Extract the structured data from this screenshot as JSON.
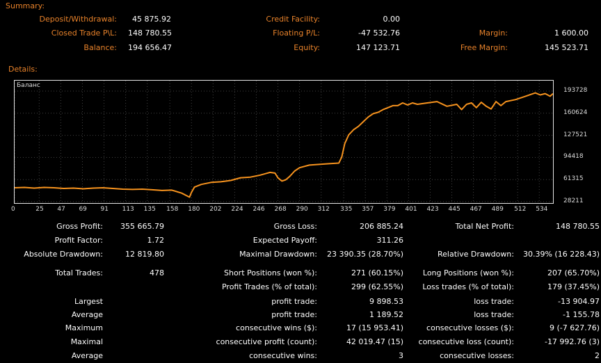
{
  "summary": {
    "title": "Summary:",
    "deposit_label": "Deposit/Withdrawal:",
    "deposit_value": "45 875.92",
    "credit_label": "Credit Facility:",
    "credit_value": "0.00",
    "closed_label": "Closed Trade P\\L:",
    "closed_value": "148 780.55",
    "floating_label": "Floating P/L:",
    "floating_value": "-47 532.76",
    "margin_label": "Margin:",
    "margin_value": "1 600.00",
    "balance_label": "Balance:",
    "balance_value": "194 656.47",
    "equity_label": "Equity:",
    "equity_value": "147 123.71",
    "free_margin_label": "Free Margin:",
    "free_margin_value": "145 523.71"
  },
  "details": {
    "title": "Details:"
  },
  "chart_data": {
    "type": "line",
    "title": "Баланс",
    "x_ticks": [
      "0",
      "25",
      "47",
      "69",
      "91",
      "113",
      "135",
      "158",
      "180",
      "202",
      "224",
      "246",
      "268",
      "290",
      "312",
      "335",
      "357",
      "379",
      "401",
      "423",
      "445",
      "467",
      "489",
      "512",
      "534"
    ],
    "y_ticks": [
      "193728",
      "160624",
      "127521",
      "94418",
      "61315",
      "28211"
    ],
    "ylim": [
      28211,
      193728
    ],
    "xlim": [
      0,
      548
    ],
    "line_color": "#f7931e",
    "series": [
      {
        "x": [
          0,
          10,
          20,
          30,
          40,
          50,
          60,
          70,
          80,
          90,
          100,
          110,
          120,
          130,
          140,
          150,
          160,
          170,
          178,
          180,
          183,
          190,
          200,
          210,
          220,
          230,
          240,
          250,
          260,
          265,
          268,
          272,
          276,
          280,
          285,
          290,
          300,
          310,
          320,
          330,
          333,
          336,
          340,
          345,
          350,
          355,
          360,
          365,
          370,
          375,
          380,
          385,
          390,
          395,
          400,
          405,
          410,
          420,
          430,
          440,
          450,
          455,
          460,
          465,
          470,
          475,
          480,
          485,
          490,
          495,
          500,
          510,
          520,
          530,
          535,
          540,
          545,
          548
        ],
        "y": [
          49000,
          49500,
          48500,
          49500,
          49000,
          48000,
          48500,
          47500,
          48500,
          49000,
          48000,
          47000,
          46500,
          47000,
          46000,
          45000,
          45500,
          41000,
          35000,
          42000,
          50000,
          54000,
          57000,
          58000,
          60000,
          64000,
          65000,
          68000,
          72000,
          71000,
          64000,
          59000,
          61000,
          66000,
          74000,
          79000,
          83000,
          84000,
          85000,
          86000,
          95000,
          115000,
          128000,
          136000,
          141000,
          148000,
          155000,
          160000,
          162000,
          166000,
          169000,
          172000,
          172000,
          176000,
          173000,
          176000,
          174000,
          176000,
          178000,
          171000,
          174000,
          166000,
          174000,
          176000,
          169000,
          177000,
          171000,
          167000,
          178000,
          172000,
          178000,
          181000,
          186000,
          191000,
          188000,
          190000,
          186000,
          190000
        ]
      }
    ]
  },
  "stats": {
    "gross_profit_label": "Gross Profit:",
    "gross_profit_value": "355 665.79",
    "gross_loss_label": "Gross Loss:",
    "gross_loss_value": "206 885.24",
    "total_net_label": "Total Net Profit:",
    "total_net_value": "148 780.55",
    "profit_factor_label": "Profit Factor:",
    "profit_factor_value": "1.72",
    "expected_payoff_label": "Expected Payoff:",
    "expected_payoff_value": "311.26",
    "abs_dd_label": "Absolute Drawdown:",
    "abs_dd_value": "12 819.80",
    "max_dd_label": "Maximal Drawdown:",
    "max_dd_value": "23 390.35 (28.70%)",
    "rel_dd_label": "Relative Drawdown:",
    "rel_dd_value": "30.39% (16 228.43)",
    "total_trades_label": "Total Trades:",
    "total_trades_value": "478",
    "short_pos_label": "Short Positions (won %):",
    "short_pos_value": "271 (60.15%)",
    "long_pos_label": "Long Positions (won %):",
    "long_pos_value": "207 (65.70%)",
    "profit_trades_label": "Profit Trades (% of total):",
    "profit_trades_value": "299 (62.55%)",
    "loss_trades_label": "Loss trades (% of total):",
    "loss_trades_value": "179 (37.45%)",
    "largest_label": "Largest",
    "largest_profit_label": "profit trade:",
    "largest_profit_value": "9 898.53",
    "largest_loss_label": "loss trade:",
    "largest_loss_value": "-13 904.97",
    "average_label": "Average",
    "average_profit_label": "profit trade:",
    "average_profit_value": "1 189.52",
    "average_loss_label": "loss trade:",
    "average_loss_value": "-1 155.78",
    "maximum_label": "Maximum",
    "max_cons_wins_label": "consecutive wins ($):",
    "max_cons_wins_value": "17 (15 953.41)",
    "max_cons_losses_label": "consecutive losses ($):",
    "max_cons_losses_value": "9 (-7 627.76)",
    "maximal_label": "Maximal",
    "maximal_profit_label": "consecutive profit (count):",
    "maximal_profit_value": "42 019.47 (15)",
    "maximal_loss_label": "consecutive loss (count):",
    "maximal_loss_value": "-17 992.76 (3)",
    "average2_label": "Average",
    "avg_cons_wins_label": "consecutive wins:",
    "avg_cons_wins_value": "3",
    "avg_cons_losses_label": "consecutive losses:",
    "avg_cons_losses_value": "2"
  }
}
